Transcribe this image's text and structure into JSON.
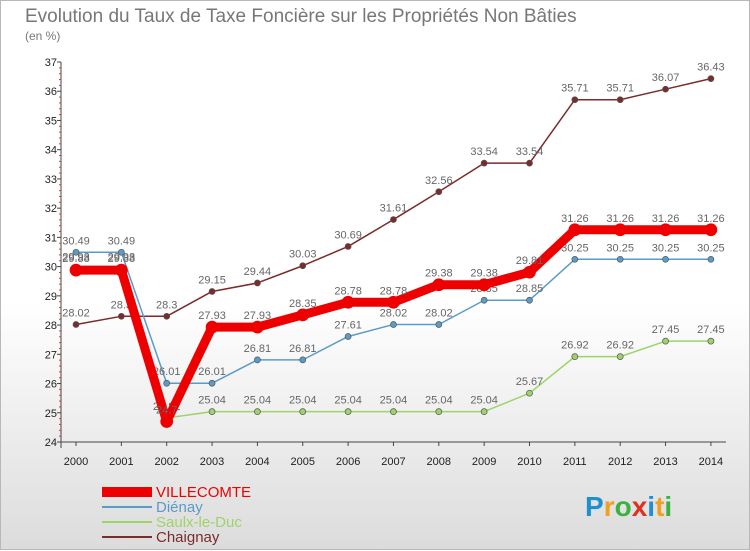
{
  "title": "Evolution du Taux de Taxe Foncière sur les Propriétés Non Bâties",
  "subtitle": "(en %)",
  "logo": {
    "letters": [
      "P",
      "r",
      "o",
      "x",
      "i",
      "t",
      "i"
    ],
    "colors": [
      "#1e90d0",
      "#f0a020",
      "#3cb040",
      "#e03020",
      "#1e90d0",
      "#f0a020",
      "#3cb040"
    ]
  },
  "chart_data": {
    "type": "line",
    "x": [
      2000,
      2001,
      2002,
      2003,
      2004,
      2005,
      2006,
      2007,
      2008,
      2009,
      2010,
      2011,
      2012,
      2013,
      2014
    ],
    "ylim": [
      24,
      37
    ],
    "yticks": [
      24,
      25,
      26,
      27,
      28,
      29,
      30,
      31,
      32,
      33,
      34,
      35,
      36,
      37
    ],
    "grid": false,
    "legend": "bottom-left",
    "series": [
      {
        "name": "Chaignay",
        "color": "#7a2b2b",
        "values": [
          28.02,
          28.3,
          28.3,
          29.15,
          29.44,
          30.03,
          30.69,
          31.61,
          32.56,
          33.54,
          33.54,
          35.71,
          35.71,
          36.07,
          36.43
        ],
        "labels": [
          "28.02",
          "28.3",
          "28.3",
          "29.15",
          "29.44",
          "30.03",
          "30.69",
          "31.61",
          "32.56",
          "33.54",
          "33.54",
          "35.71",
          "35.71",
          "36.07",
          "36.43"
        ]
      },
      {
        "name": "Diénay",
        "color": "#5b9bc8",
        "values": [
          30.49,
          30.49,
          26.01,
          26.01,
          26.81,
          26.81,
          27.61,
          28.02,
          28.02,
          28.85,
          28.85,
          30.25,
          30.25,
          30.25,
          30.25
        ],
        "labels": [
          "30.49",
          "30.49",
          "26.01",
          "26.01",
          "26.81",
          "26.81",
          "27.61",
          "28.02",
          "28.02",
          "28.85",
          "28.85",
          "30.25",
          "30.25",
          "30.25",
          "30.25"
        ]
      },
      {
        "name": "Saulx-le-Duc",
        "color": "#9ed36a",
        "values": [
          29.93,
          29.93,
          24.82,
          25.04,
          25.04,
          25.04,
          25.04,
          25.04,
          25.04,
          25.04,
          25.67,
          26.92,
          26.92,
          27.45,
          27.45
        ],
        "labels": [
          "29.93",
          "29.93",
          "24.82",
          "25.04",
          "25.04",
          "25.04",
          "25.04",
          "25.04",
          "25.04",
          "25.04",
          "25.67",
          "26.92",
          "26.92",
          "27.45",
          "27.45"
        ]
      },
      {
        "name": "VILLECOMTE",
        "color": "#ee0000",
        "values": [
          29.88,
          29.88,
          24.7,
          27.93,
          27.93,
          28.35,
          28.78,
          28.78,
          29.38,
          29.38,
          29.81,
          31.26,
          31.26,
          31.26,
          31.26
        ],
        "labels": [
          "29.88",
          "29.88",
          "24.7",
          "27.93",
          "27.93",
          "28.35",
          "28.78",
          "28.78",
          "29.38",
          "29.38",
          "29.81",
          "31.26",
          "31.26",
          "31.26",
          "31.26"
        ]
      }
    ],
    "legend_order": [
      "VILLECOMTE",
      "Diénay",
      "Saulx-le-Duc",
      "Chaignay"
    ]
  }
}
